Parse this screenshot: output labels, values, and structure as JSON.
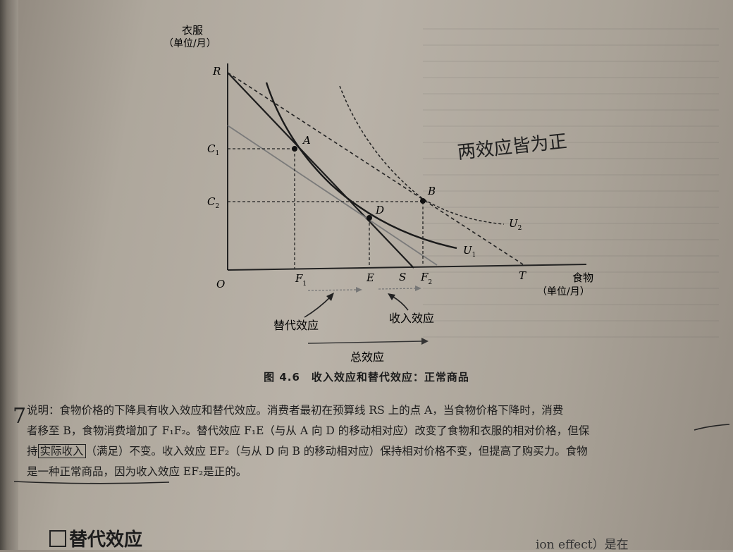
{
  "figure": {
    "y_axis_title": "衣服",
    "y_axis_unit": "（单位/月）",
    "x_axis_title": "食物",
    "x_axis_unit": "（单位/月）",
    "origin": "O",
    "points": {
      "R": "R",
      "C1": "C",
      "C1_sub": "1",
      "C2": "C",
      "C2_sub": "2",
      "A": "A",
      "B": "B",
      "D": "D",
      "F1": "F",
      "F1_sub": "1",
      "E": "E",
      "S": "S",
      "F2": "F",
      "F2_sub": "2",
      "T": "T"
    },
    "curves": {
      "U1": "U",
      "U1_sub": "1",
      "U2": "U",
      "U2_sub": "2"
    },
    "effects": {
      "substitution": "替代效应",
      "income": "收入效应",
      "total": "总效应"
    },
    "handwritten_note": "两效应皆为正"
  },
  "caption": "图 4.6　收入效应和替代效应：正常商品",
  "explanation": {
    "line1": "说明：食物价格的下降具有收入效应和替代效应。消费者最初在预算线 RS 上的点 A，当食物价格下降时，消费",
    "line2": "者移至 B，食物消费增加了 F₁F₂。替代效应 F₁E（与从 A 向 D 的移动相对应）改变了食物和衣服的相对价格，但保",
    "line3_pre": "持",
    "line3_boxed": "实际收入",
    "line3_post": "（满足）不变。收入效应 EF₂（与从 D 向 B 的移动相对应）保持相对价格不变，但提高了购买力。食物",
    "line4": "是一种正常商品，因为收入效应 EF₂是正的。",
    "margin_mark": "7"
  },
  "section_title": "替代效应",
  "bottom_fragment": "ion effect）是在"
}
